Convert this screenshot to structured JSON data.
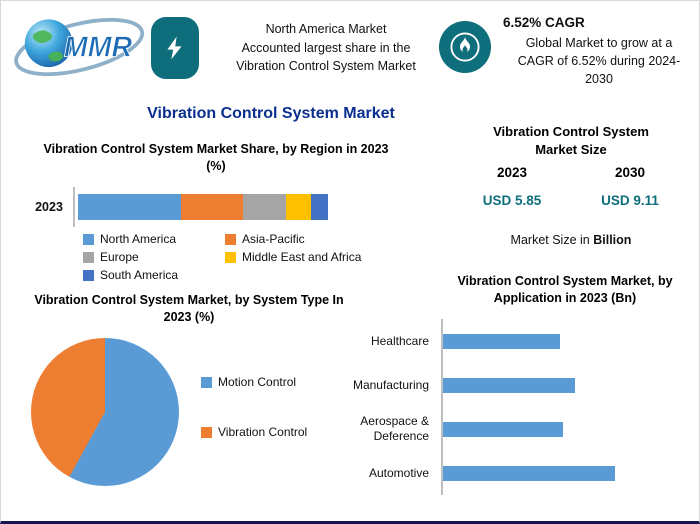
{
  "page": {
    "title": "Vibration Control System Market",
    "accent_teal": "#0e6e7c",
    "title_color": "#0a2f8f"
  },
  "logo": {
    "text": "MMR"
  },
  "callouts": {
    "north_america": {
      "text": "North America Market\nAccounted largest share in the\nVibration Control System Market"
    },
    "cagr": {
      "heading": "6.52% CAGR",
      "text": "Global Market to grow at a\nCAGR of 6.52% during 2024-\n2030"
    }
  },
  "market_size": {
    "title": "Vibration Control System Market Size",
    "columns": [
      {
        "year": "2023",
        "value": "USD 5.85"
      },
      {
        "year": "2030",
        "value": "USD 9.11"
      }
    ],
    "note_regular": "Market Size in",
    "note_bold": "Billion"
  },
  "chart_data": [
    {
      "type": "bar",
      "subtype": "stacked-horizontal",
      "title": "Vibration Control System Market Share, by Region in 2023 (%)",
      "categories": [
        "2023"
      ],
      "unit": "%",
      "legend_position": "bottom",
      "series": [
        {
          "name": "North America",
          "color": "#5B9BD5",
          "values": [
            41
          ]
        },
        {
          "name": "Asia-Pacific",
          "color": "#ED7D31",
          "values": [
            25
          ]
        },
        {
          "name": "Europe",
          "color": "#A5A5A5",
          "values": [
            17
          ]
        },
        {
          "name": "Middle East and Africa",
          "color": "#FFC000",
          "values": [
            10
          ]
        },
        {
          "name": "South America",
          "color": "#4472C4",
          "values": [
            7
          ]
        }
      ]
    },
    {
      "type": "pie",
      "title": "Vibration Control System Market, by System Type In 2023 (%)",
      "labels": [
        "Motion Control",
        "Vibration Control"
      ],
      "values": [
        58,
        42
      ],
      "colors": [
        "#5B9BD5",
        "#ED7D31"
      ],
      "legend_position": "right"
    },
    {
      "type": "bar",
      "subtype": "horizontal",
      "title": "Vibration Control System Market, by Application in 2023 (Bn)",
      "categories": [
        "Healthcare",
        "Manufacturing",
        "Aerospace & Deference",
        "Automotive"
      ],
      "values": [
        1.15,
        1.3,
        1.18,
        1.69
      ],
      "unit": "USD Bn",
      "color": "#5B9BD5",
      "axis": {
        "grid": false,
        "value_labels": false
      }
    }
  ]
}
